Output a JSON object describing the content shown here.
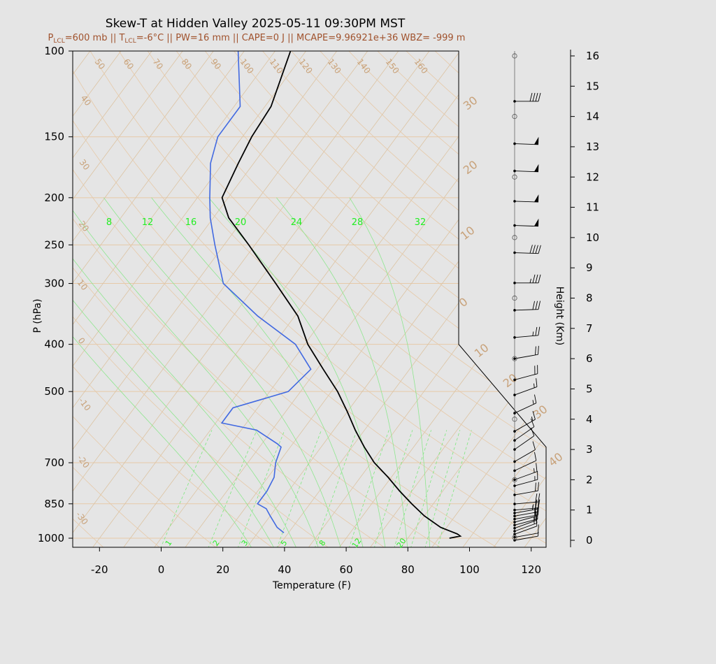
{
  "chart_data": {
    "type": "line",
    "title": "Skew-T at Hidden Valley 2025-05-11 09:30PM MST",
    "subtitle": {
      "lcl_prefix": "P",
      "lcl_sub": "LCL",
      "lcl_value": "=600 mb || T",
      "tlcl_sub": "LCL",
      "rest": "=-6°C || PW=16 mm || CAPE=0 J || MCAPE=9.96921e+36 WBZ= -999 m"
    },
    "xlabel": "Temperature (F)",
    "ylabel": "P (hPa)",
    "y2label": "Height (Km)",
    "xlim": [
      -28,
      125
    ],
    "ylim": [
      1050,
      100
    ],
    "x_ticks": [
      "-20",
      "0",
      "20",
      "40",
      "60",
      "80",
      "100",
      "120"
    ],
    "p_ticks": [
      "100",
      "150",
      "200",
      "250",
      "300",
      "400",
      "500",
      "700",
      "850",
      "1000"
    ],
    "height_ticks": [
      "0",
      "1",
      "2",
      "3",
      "4",
      "5",
      "6",
      "7",
      "8",
      "9",
      "10",
      "11",
      "12",
      "13",
      "14",
      "15",
      "16"
    ],
    "isotherm_labels": [
      "50",
      "60",
      "70",
      "80",
      "90",
      "100",
      "110",
      "120",
      "130",
      "140",
      "150",
      "160",
      "40",
      "30",
      "20",
      "10",
      "0",
      "-10",
      "-20",
      "-30"
    ],
    "dry_adiabat_labels": [
      "30",
      "20",
      "10",
      "0",
      "10",
      "20",
      "30",
      "40"
    ],
    "mixing_ratio_labels_top": [
      "8",
      "12",
      "16",
      "20",
      "24",
      "28",
      "32"
    ],
    "mixing_ratio_labels_bottom": [
      "1",
      "2",
      "3",
      "5",
      "8",
      "12",
      "20"
    ],
    "series": [
      {
        "color": "#000000",
        "points": [
          [
            1000,
            93.5
          ],
          [
            990,
            96.5
          ],
          [
            980,
            95
          ],
          [
            950,
            88
          ],
          [
            900,
            80
          ],
          [
            850,
            73
          ],
          [
            800,
            66
          ],
          [
            750,
            59
          ],
          [
            700,
            51
          ],
          [
            650,
            44
          ],
          [
            600,
            37
          ],
          [
            550,
            30
          ],
          [
            500,
            22
          ],
          [
            450,
            12
          ],
          [
            400,
            1
          ],
          [
            350,
            -9
          ],
          [
            300,
            -24
          ],
          [
            250,
            -42
          ],
          [
            220,
            -55
          ],
          [
            200,
            -62
          ],
          [
            170,
            -65
          ],
          [
            150,
            -67
          ],
          [
            130,
            -68
          ],
          [
            100,
            -75
          ]
        ]
      },
      {
        "color": "#4169e1",
        "points": [
          [
            975,
            38.5
          ],
          [
            950,
            35
          ],
          [
            900,
            30
          ],
          [
            870,
            27
          ],
          [
            850,
            23
          ],
          [
            800,
            23
          ],
          [
            750,
            22
          ],
          [
            700,
            19
          ],
          [
            650,
            17
          ],
          [
            640,
            15
          ],
          [
            600,
            5
          ],
          [
            580,
            -8
          ],
          [
            540,
            -8
          ],
          [
            500,
            6
          ],
          [
            450,
            8
          ],
          [
            400,
            -3
          ],
          [
            350,
            -22
          ],
          [
            300,
            -41
          ],
          [
            250,
            -53
          ],
          [
            220,
            -61
          ],
          [
            200,
            -66
          ],
          [
            170,
            -74
          ],
          [
            150,
            -78
          ],
          [
            130,
            -78
          ],
          [
            100,
            -92
          ]
        ]
      }
    ],
    "wind_km": [
      0,
      0.1,
      0.2,
      0.3,
      0.4,
      0.5,
      0.6,
      0.7,
      0.8,
      0.9,
      1.0,
      1.2,
      1.5,
      1.8,
      2.0,
      2.3,
      2.6,
      3.0,
      3.3,
      3.6,
      4.2,
      4.8,
      5.3,
      6.0,
      6.7,
      7.6,
      8.5,
      9.5,
      10.4,
      11.2,
      12.2,
      13.1,
      14.5
    ],
    "wind_kts": [
      8,
      10,
      12,
      15,
      18,
      20,
      20,
      22,
      22,
      25,
      25,
      22,
      20,
      18,
      15,
      12,
      12,
      10,
      10,
      15,
      15,
      18,
      20,
      22,
      25,
      30,
      35,
      40,
      50,
      50,
      50,
      50,
      40
    ],
    "wind_dir": [
      260,
      260,
      250,
      250,
      250,
      255,
      255,
      260,
      260,
      260,
      265,
      265,
      260,
      255,
      250,
      245,
      240,
      235,
      235,
      240,
      245,
      250,
      255,
      260,
      265,
      268,
      270,
      272,
      272,
      272,
      272,
      272,
      270
    ]
  }
}
